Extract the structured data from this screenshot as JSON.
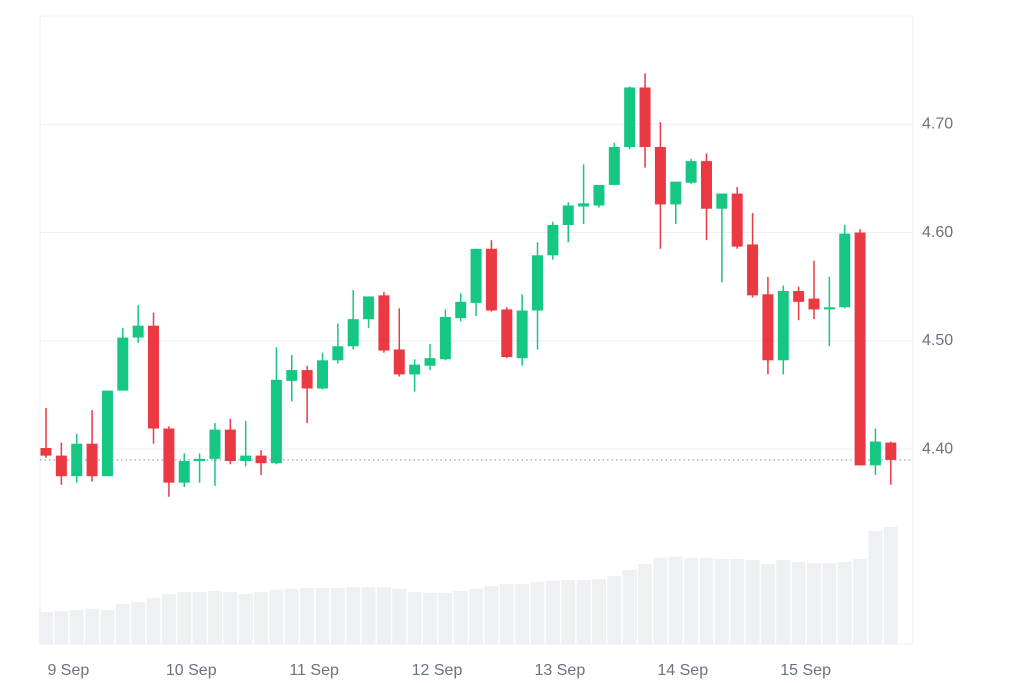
{
  "chart_data": {
    "type": "candlestick",
    "categories": [
      null,
      "9 Sep",
      null,
      null,
      null,
      null,
      null,
      null,
      null,
      "10 Sep",
      null,
      null,
      null,
      null,
      null,
      null,
      null,
      "11 Sep",
      null,
      null,
      null,
      null,
      null,
      null,
      null,
      "12 Sep",
      null,
      null,
      null,
      null,
      null,
      null,
      null,
      "13 Sep",
      null,
      null,
      null,
      null,
      null,
      null,
      null,
      "14 Sep",
      null,
      null,
      null,
      null,
      null,
      null,
      null,
      "15 Sep",
      null,
      null,
      null,
      null,
      null,
      null
    ],
    "open": [
      4.401,
      4.394,
      4.375,
      4.405,
      4.375,
      4.454,
      4.503,
      4.514,
      4.419,
      4.369,
      4.389,
      4.391,
      4.418,
      4.389,
      4.394,
      4.387,
      4.463,
      4.473,
      4.456,
      4.482,
      4.495,
      4.52,
      4.542,
      4.492,
      4.469,
      4.477,
      4.483,
      4.521,
      4.535,
      4.585,
      4.529,
      4.484,
      4.528,
      4.579,
      4.607,
      4.624,
      4.625,
      4.644,
      4.679,
      4.734,
      4.679,
      4.626,
      4.646,
      4.666,
      4.622,
      4.636,
      4.589,
      4.543,
      4.482,
      4.546,
      4.539,
      4.529,
      4.531,
      4.6,
      4.385,
      4.406
    ],
    "high": [
      4.438,
      4.406,
      4.414,
      4.436,
      4.454,
      4.512,
      4.533,
      4.526,
      4.421,
      4.396,
      4.396,
      4.424,
      4.428,
      4.426,
      4.399,
      4.494,
      4.487,
      4.477,
      4.489,
      4.516,
      4.547,
      4.541,
      4.545,
      4.53,
      4.483,
      4.497,
      4.529,
      4.544,
      4.585,
      4.593,
      4.531,
      4.543,
      4.591,
      4.61,
      4.628,
      4.663,
      4.644,
      4.683,
      4.735,
      4.747,
      4.702,
      4.647,
      4.668,
      4.673,
      4.636,
      4.642,
      4.618,
      4.559,
      4.551,
      4.55,
      4.574,
      4.559,
      4.607,
      4.603,
      4.419,
      4.407
    ],
    "low": [
      4.392,
      4.367,
      4.369,
      4.37,
      4.375,
      4.454,
      4.498,
      4.405,
      4.356,
      4.365,
      4.369,
      4.366,
      4.386,
      4.384,
      4.376,
      4.386,
      4.444,
      4.424,
      4.455,
      4.479,
      4.492,
      4.512,
      4.489,
      4.467,
      4.453,
      4.473,
      4.482,
      4.518,
      4.523,
      4.527,
      4.484,
      4.477,
      4.492,
      4.575,
      4.591,
      4.608,
      4.623,
      4.644,
      4.677,
      4.66,
      4.585,
      4.608,
      4.645,
      4.593,
      4.554,
      4.585,
      4.54,
      4.469,
      4.469,
      4.519,
      4.52,
      4.495,
      4.53,
      4.385,
      4.376,
      4.367
    ],
    "close": [
      4.394,
      4.375,
      4.405,
      4.375,
      4.454,
      4.503,
      4.514,
      4.419,
      4.369,
      4.389,
      4.391,
      4.418,
      4.389,
      4.394,
      4.387,
      4.464,
      4.473,
      4.456,
      4.482,
      4.495,
      4.52,
      4.541,
      4.491,
      4.469,
      4.478,
      4.484,
      4.522,
      4.536,
      4.585,
      4.528,
      4.485,
      4.528,
      4.579,
      4.607,
      4.625,
      4.627,
      4.644,
      4.679,
      4.734,
      4.679,
      4.626,
      4.647,
      4.666,
      4.622,
      4.636,
      4.587,
      4.542,
      4.482,
      4.546,
      4.536,
      4.529,
      4.531,
      4.599,
      4.385,
      4.407,
      4.39
    ],
    "volume": [
      32,
      33,
      34,
      35,
      34,
      40,
      42,
      46,
      50,
      52,
      52,
      53,
      52,
      50,
      52,
      54,
      55,
      56,
      56,
      56,
      57,
      57,
      57,
      55,
      52,
      51,
      51,
      53,
      55,
      58,
      60,
      60,
      62,
      63,
      64,
      64,
      65,
      68,
      74,
      80,
      86,
      87,
      86,
      86,
      85,
      85,
      84,
      80,
      84,
      82,
      81,
      81,
      82,
      85,
      113,
      117
    ],
    "volume_ylim": [
      0,
      130
    ],
    "up_color": "#16c784",
    "down_color": "#ea3943",
    "volume_color": "#eef0f4",
    "price_line": 4.39,
    "ylim": [
      4.22,
      4.8
    ],
    "yticks": [
      {
        "value": 4.4,
        "label": "4.40"
      },
      {
        "value": 4.5,
        "label": "4.50"
      },
      {
        "value": 4.6,
        "label": "4.60"
      },
      {
        "value": 4.7,
        "label": "4.70"
      }
    ],
    "grid": true
  }
}
